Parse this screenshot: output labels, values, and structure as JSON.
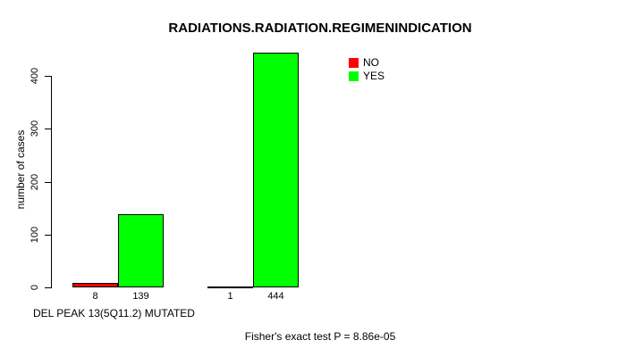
{
  "chart_data": {
    "type": "bar",
    "title": "RADIATIONS.RADIATION.REGIMENINDICATION",
    "xlabel": "DEL PEAK 13(5Q11.2) MUTATED",
    "ylabel": "number of cases",
    "annotation": "Fisher's exact test P = 8.86e-05",
    "categories": [
      "",
      ""
    ],
    "series": [
      {
        "name": "NO",
        "color": "#ff0000",
        "values": [
          8,
          1
        ]
      },
      {
        "name": "YES",
        "color": "#00ff00",
        "values": [
          139,
          444
        ]
      }
    ],
    "bar_value_labels": [
      [
        "8",
        "139"
      ],
      [
        "1",
        "444"
      ]
    ],
    "yticks": [
      0,
      100,
      200,
      300,
      400
    ],
    "ylim": [
      0,
      455
    ],
    "grid": false,
    "legend_position": "top-right",
    "axis_color": "#000000",
    "background_color": "#ffffff"
  }
}
